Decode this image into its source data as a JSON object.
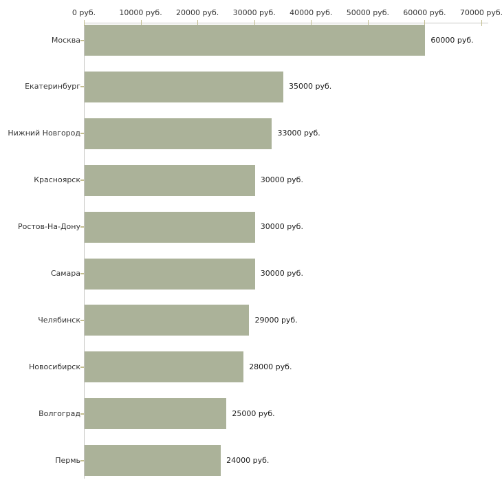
{
  "chart_data": {
    "type": "bar",
    "orientation": "horizontal",
    "title": "",
    "categories": [
      "Москва",
      "Екатеринбург",
      "Нижний Новгород",
      "Красноярск",
      "Ростов-На-Дону",
      "Самара",
      "Челябинск",
      "Новосибирск",
      "Волгоград",
      "Пермь"
    ],
    "values": [
      60000,
      35000,
      33000,
      30000,
      30000,
      30000,
      29000,
      28000,
      25000,
      24000
    ],
    "value_labels": [
      "60000 руб.",
      "35000 руб.",
      "33000 руб.",
      "30000 руб.",
      "30000 руб.",
      "30000 руб.",
      "29000 руб.",
      "28000 руб.",
      "25000 руб.",
      "24000 руб."
    ],
    "x_axis": {
      "min": 0,
      "max": 70000,
      "ticks": [
        0,
        10000,
        20000,
        30000,
        40000,
        50000,
        60000,
        70000
      ],
      "tick_labels": [
        "0 руб.",
        "10000 руб.",
        "20000 руб.",
        "30000 руб.",
        "40000 руб.",
        "50000 руб.",
        "60000 руб.",
        "70000 руб."
      ]
    },
    "xlabel": "",
    "ylabel": "",
    "legend": false,
    "grid": false,
    "colors": {
      "bar_fill": "#abb299",
      "axis_line": "#c6c6c3",
      "tick_mark": "#c2bd8e",
      "label_text": "#333333",
      "value_text": "#1a1a1a",
      "background": "#ffffff"
    }
  }
}
